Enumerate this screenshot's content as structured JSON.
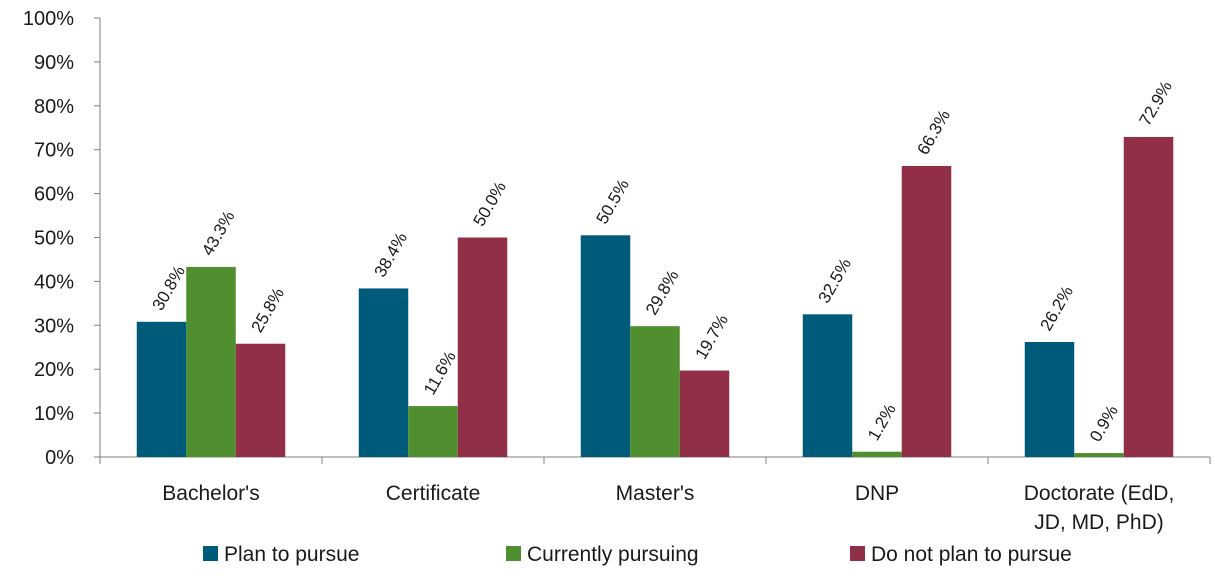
{
  "chart_data": {
    "type": "bar",
    "title": "",
    "xlabel": "",
    "ylabel": "",
    "ylim": [
      0,
      100
    ],
    "yticks": [
      0,
      10,
      20,
      30,
      40,
      50,
      60,
      70,
      80,
      90,
      100
    ],
    "ytick_suffix": "%",
    "grid": false,
    "legend_position": "bottom",
    "categories": [
      [
        "Bachelor's"
      ],
      [
        "Certificate"
      ],
      [
        "Master's"
      ],
      [
        "DNP"
      ],
      [
        "Doctorate (EdD,",
        "JD, MD, PhD)"
      ]
    ],
    "series": [
      {
        "name": "Plan to pursue",
        "color": "#005A7A",
        "values": [
          30.8,
          38.4,
          50.5,
          32.5,
          26.2
        ],
        "labels": [
          "30.8%",
          "38.4%",
          "50.5%",
          "32.5%",
          "26.2%"
        ]
      },
      {
        "name": "Currently pursuing",
        "color": "#4F8F2F",
        "values": [
          43.3,
          11.6,
          29.8,
          1.2,
          0.9
        ],
        "labels": [
          "43.3%",
          "11.6%",
          "29.8%",
          "1.2%",
          "0.9%"
        ]
      },
      {
        "name": "Do not plan to pursue",
        "color": "#912F46",
        "values": [
          25.8,
          50.0,
          19.7,
          66.3,
          72.9
        ],
        "labels": [
          "25.8%",
          "50.0%",
          "19.7%",
          "66.3%",
          "72.9%"
        ]
      }
    ]
  }
}
